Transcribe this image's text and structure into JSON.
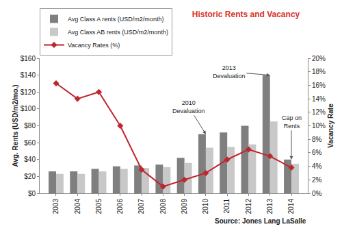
{
  "chart_data": {
    "type": "bar",
    "title": "Historic Rents and Vacancy",
    "categories": [
      "2003",
      "2004",
      "2005",
      "2006",
      "2007",
      "2008",
      "2009",
      "2010",
      "2011",
      "2012",
      "2013",
      "2014"
    ],
    "series": [
      {
        "name": "Avg Class A rents (USD/m2/month)",
        "type": "bar",
        "color": "#7f7f7f",
        "values": [
          26,
          26,
          29,
          32,
          33,
          34,
          42,
          70,
          72,
          80,
          140,
          40
        ]
      },
      {
        "name": "Avg Class AB rents (USD/m2/month)",
        "type": "bar",
        "color": "#c8c8c8",
        "values": [
          23,
          23,
          26,
          29,
          30,
          31,
          36,
          54,
          55,
          58,
          85,
          35
        ]
      },
      {
        "name": "Vacancy Rates (%)",
        "type": "line",
        "axis": "y2",
        "color": "#c0262d",
        "marker": "diamond",
        "values": [
          16.3,
          14,
          15,
          10,
          3.5,
          1,
          2,
          3,
          5,
          6.5,
          5.5,
          3.8
        ]
      }
    ],
    "y_label": "Avg. Rents (USD/m2/mo.)",
    "y2_label": "Vacancy Rate",
    "ylim": [
      0,
      160
    ],
    "yticks": [
      {
        "value": 0,
        "label": "$0"
      },
      {
        "value": 20,
        "label": "$20"
      },
      {
        "value": 40,
        "label": "$40"
      },
      {
        "value": 60,
        "label": "$60"
      },
      {
        "value": 80,
        "label": "$80"
      },
      {
        "value": 100,
        "label": "$100"
      },
      {
        "value": 120,
        "label": "$120"
      },
      {
        "value": 140,
        "label": "$140"
      },
      {
        "value": 160,
        "label": "$160"
      }
    ],
    "y2lim": [
      0,
      20
    ],
    "y2ticks": [
      {
        "value": 0,
        "label": "0%"
      },
      {
        "value": 2,
        "label": "2%"
      },
      {
        "value": 4,
        "label": "4%"
      },
      {
        "value": 6,
        "label": "6%"
      },
      {
        "value": 8,
        "label": "8%"
      },
      {
        "value": 10,
        "label": "10%"
      },
      {
        "value": 12,
        "label": "12%"
      },
      {
        "value": 14,
        "label": "14%"
      },
      {
        "value": 16,
        "label": "16%"
      },
      {
        "value": 18,
        "label": "18%"
      },
      {
        "value": 20,
        "label": "20%"
      }
    ],
    "annotations": [
      {
        "text": "2010\nDevaluation",
        "category": "2010"
      },
      {
        "text": "2013\nDevaluation",
        "category": "2013"
      },
      {
        "text": "Cap on\nRents",
        "category": "2014"
      }
    ],
    "source": "Source: Jones Lang LaSalle",
    "grid": false,
    "legend": "upper left"
  }
}
